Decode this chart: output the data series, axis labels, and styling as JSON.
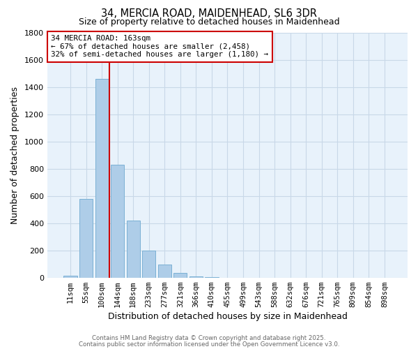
{
  "title_line1": "34, MERCIA ROAD, MAIDENHEAD, SL6 3DR",
  "title_line2": "Size of property relative to detached houses in Maidenhead",
  "xlabel": "Distribution of detached houses by size in Maidenhead",
  "ylabel": "Number of detached properties",
  "bar_labels": [
    "11sqm",
    "55sqm",
    "100sqm",
    "144sqm",
    "188sqm",
    "233sqm",
    "277sqm",
    "321sqm",
    "366sqm",
    "410sqm",
    "455sqm",
    "499sqm",
    "543sqm",
    "588sqm",
    "632sqm",
    "676sqm",
    "721sqm",
    "765sqm",
    "809sqm",
    "854sqm",
    "898sqm"
  ],
  "bar_values": [
    15,
    580,
    1460,
    830,
    420,
    200,
    95,
    35,
    8,
    1,
    0,
    0,
    0,
    0,
    0,
    0,
    0,
    0,
    0,
    0,
    0
  ],
  "bar_color": "#aecde8",
  "bar_edgecolor": "#7ab0d4",
  "ylim": [
    0,
    1800
  ],
  "yticks": [
    0,
    200,
    400,
    600,
    800,
    1000,
    1200,
    1400,
    1600,
    1800
  ],
  "grid_color": "#c8d8e8",
  "bg_color": "#e8f2fb",
  "vline_color": "#cc0000",
  "annotation_title": "34 MERCIA ROAD: 163sqm",
  "annotation_line2": "← 67% of detached houses are smaller (2,458)",
  "annotation_line3": "32% of semi-detached houses are larger (1,180) →",
  "footer_line1": "Contains HM Land Registry data © Crown copyright and database right 2025.",
  "footer_line2": "Contains public sector information licensed under the Open Government Licence v3.0."
}
